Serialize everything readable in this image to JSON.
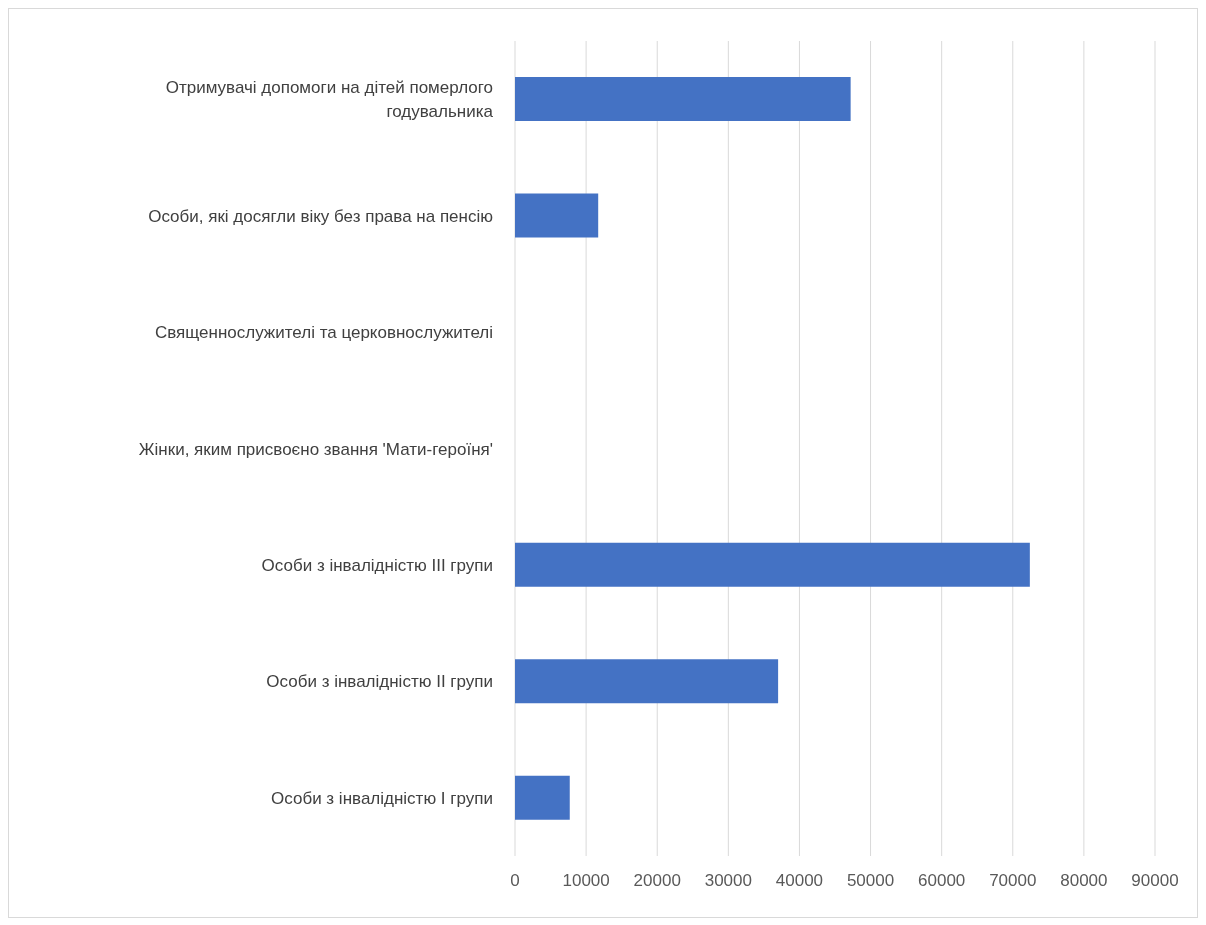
{
  "chart_data": {
    "type": "bar",
    "orientation": "horizontal",
    "categories": [
      "Отримувачі допомоги на дітей померлого годувальника",
      "Особи, які досягли віку без права на пенсію",
      "Священнослужителі та церковнослужителі",
      "Жінки, яким присвоєно звання 'Мати-героїня'",
      "Особи з інвалідністю ІІІ групи",
      "Особи з інвалідністю ІІ групи",
      "Особи з інвалідністю І групи"
    ],
    "values": [
      47200,
      11700,
      0,
      0,
      72400,
      37000,
      7700
    ],
    "color": "#4472c4",
    "xlim": [
      0,
      90000
    ],
    "xticks": [
      0,
      10000,
      20000,
      30000,
      40000,
      50000,
      60000,
      70000,
      80000,
      90000
    ],
    "grid": "x"
  }
}
